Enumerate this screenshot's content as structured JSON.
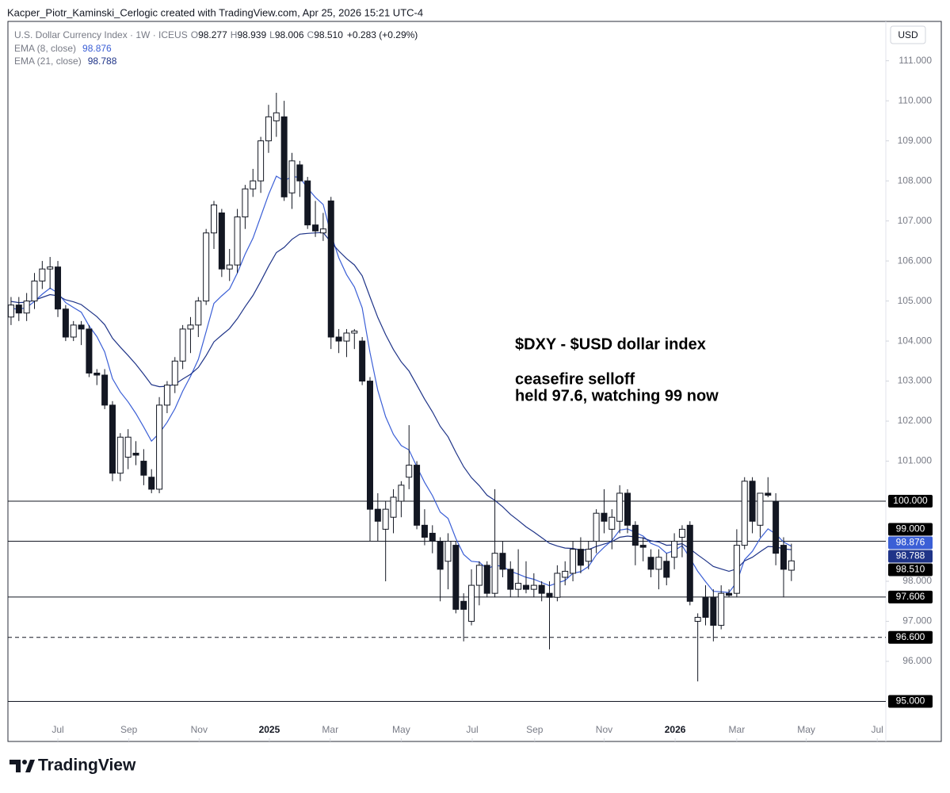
{
  "header": {
    "credit": "Kacper_Piotr_Kaminski_Cerlogic created with TradingView.com, Apr 25, 2026 15:21 UTC-4",
    "currency_button": "USD",
    "brand": "TradingView"
  },
  "chart_data": {
    "type": "candlestick",
    "symbol": "U.S. Dollar Currency Index · 1W · ICEUS",
    "ohlc_prefixes": [
      "O",
      "H",
      "L",
      "C"
    ],
    "ohlc_labels": [
      "98.277",
      "98.939",
      "98.006",
      "98.510"
    ],
    "change_label": "+0.283 (+0.29%)",
    "annotations": [
      "$DXY - $USD dollar index",
      "ceasefire selloff",
      "held 97.6, watching 99 now"
    ],
    "candles": {
      "last_label": "98.510",
      "values": [
        [
          104.6,
          105.1,
          104.4,
          104.9
        ],
        [
          104.9,
          105.1,
          104.5,
          104.7
        ],
        [
          104.7,
          105.2,
          104.5,
          105.0
        ],
        [
          105.0,
          105.7,
          104.8,
          105.5
        ],
        [
          105.5,
          106.0,
          105.3,
          105.8
        ],
        [
          105.8,
          106.1,
          105.3,
          105.85
        ],
        [
          105.85,
          106.0,
          104.6,
          104.8
        ],
        [
          104.8,
          104.9,
          104.0,
          104.1
        ],
        [
          104.1,
          104.5,
          104.0,
          104.4
        ],
        [
          104.4,
          104.5,
          103.9,
          104.3
        ],
        [
          104.3,
          104.4,
          103.1,
          103.2
        ],
        [
          103.2,
          103.3,
          102.9,
          103.15
        ],
        [
          103.15,
          103.3,
          102.3,
          102.4
        ],
        [
          102.4,
          102.5,
          100.5,
          100.7
        ],
        [
          100.7,
          101.7,
          100.5,
          101.6
        ],
        [
          101.1,
          101.8,
          100.8,
          101.6
        ],
        [
          101.2,
          101.5,
          100.9,
          101.15
        ],
        [
          101.0,
          101.3,
          100.4,
          100.65
        ],
        [
          100.6,
          100.8,
          100.2,
          100.3
        ],
        [
          100.3,
          102.6,
          100.2,
          102.4
        ],
        [
          102.4,
          103.0,
          102.2,
          102.9
        ],
        [
          102.9,
          103.6,
          102.7,
          103.5
        ],
        [
          103.5,
          104.4,
          103.3,
          104.3
        ],
        [
          104.3,
          104.6,
          103.7,
          104.4
        ],
        [
          104.4,
          105.1,
          104.1,
          105.0
        ],
        [
          105.0,
          106.8,
          104.9,
          106.7
        ],
        [
          106.7,
          107.5,
          106.3,
          107.4
        ],
        [
          107.2,
          107.3,
          105.6,
          105.8
        ],
        [
          105.8,
          106.3,
          105.5,
          105.9
        ],
        [
          105.9,
          107.3,
          105.7,
          107.1
        ],
        [
          107.1,
          107.9,
          106.8,
          107.8
        ],
        [
          107.8,
          108.3,
          107.6,
          108.0
        ],
        [
          108.0,
          109.1,
          107.7,
          109.0
        ],
        [
          109.0,
          109.9,
          108.7,
          109.6
        ],
        [
          109.5,
          110.2,
          109.1,
          109.7
        ],
        [
          109.6,
          110.0,
          107.5,
          107.6
        ],
        [
          107.7,
          108.7,
          107.3,
          108.5
        ],
        [
          108.4,
          108.5,
          107.6,
          108.0
        ],
        [
          108.0,
          108.1,
          106.8,
          106.9
        ],
        [
          106.9,
          107.5,
          106.6,
          106.75
        ],
        [
          106.7,
          107.2,
          106.5,
          106.8
        ],
        [
          107.5,
          107.6,
          103.8,
          104.1
        ],
        [
          104.1,
          104.3,
          103.7,
          104.0
        ],
        [
          104.0,
          104.3,
          103.6,
          104.2
        ],
        [
          104.2,
          104.3,
          103.8,
          104.25
        ],
        [
          104.0,
          104.1,
          102.9,
          103.0
        ],
        [
          103.0,
          103.1,
          99.0,
          99.8
        ],
        [
          99.8,
          100.2,
          99.0,
          99.5
        ],
        [
          99.3,
          100.0,
          98.0,
          99.8
        ],
        [
          99.6,
          100.3,
          99.2,
          100.1
        ],
        [
          100.0,
          100.5,
          99.6,
          100.4
        ],
        [
          100.6,
          101.9,
          100.3,
          100.9
        ],
        [
          100.9,
          101.0,
          99.3,
          99.4
        ],
        [
          99.4,
          99.8,
          98.9,
          99.1
        ],
        [
          99.2,
          99.4,
          98.7,
          99.0
        ],
        [
          99.0,
          99.1,
          97.5,
          98.3
        ],
        [
          98.5,
          99.2,
          97.8,
          99.0
        ],
        [
          98.9,
          99.0,
          97.2,
          97.3
        ],
        [
          97.5,
          97.7,
          96.5,
          97.3
        ],
        [
          97.0,
          98.3,
          96.9,
          97.9
        ],
        [
          97.9,
          98.5,
          97.4,
          98.4
        ],
        [
          98.4,
          98.5,
          97.6,
          97.7
        ],
        [
          97.7,
          100.3,
          97.6,
          98.7
        ],
        [
          98.7,
          99.0,
          98.1,
          98.3
        ],
        [
          98.3,
          98.5,
          97.6,
          97.8
        ],
        [
          97.8,
          98.8,
          97.6,
          97.95
        ],
        [
          97.9,
          98.5,
          97.7,
          97.8
        ],
        [
          97.8,
          98.2,
          97.6,
          97.9
        ],
        [
          97.9,
          98.0,
          97.5,
          97.7
        ],
        [
          97.7,
          98.0,
          96.3,
          97.6
        ],
        [
          97.6,
          98.4,
          97.5,
          98.2
        ],
        [
          98.1,
          98.5,
          97.9,
          98.25
        ],
        [
          98.2,
          99.0,
          98.0,
          98.8
        ],
        [
          98.8,
          99.1,
          98.2,
          98.4
        ],
        [
          98.5,
          99.0,
          98.3,
          98.8
        ],
        [
          99.0,
          99.8,
          98.7,
          99.7
        ],
        [
          99.7,
          100.3,
          99.2,
          99.5
        ],
        [
          99.3,
          99.8,
          98.8,
          99.6
        ],
        [
          99.5,
          100.4,
          99.2,
          100.2
        ],
        [
          100.2,
          100.3,
          99.2,
          99.4
        ],
        [
          99.4,
          99.5,
          98.4,
          98.9
        ],
        [
          98.9,
          99.1,
          98.5,
          98.85
        ],
        [
          98.6,
          98.8,
          98.1,
          98.3
        ],
        [
          98.3,
          98.8,
          97.8,
          98.6
        ],
        [
          98.5,
          98.7,
          97.9,
          98.1
        ],
        [
          98.6,
          99.2,
          98.3,
          99.0
        ],
        [
          99.1,
          99.4,
          98.6,
          99.3
        ],
        [
          99.4,
          99.5,
          97.4,
          97.5
        ],
        [
          97.0,
          97.2,
          95.5,
          97.1
        ],
        [
          97.6,
          97.9,
          96.9,
          97.1
        ],
        [
          97.6,
          97.8,
          96.5,
          96.9
        ],
        [
          96.9,
          97.9,
          96.8,
          97.7
        ],
        [
          97.7,
          97.8,
          97.6,
          97.65
        ],
        [
          97.7,
          99.3,
          97.6,
          98.9
        ],
        [
          98.9,
          100.6,
          98.8,
          100.5
        ],
        [
          100.5,
          100.6,
          99.2,
          99.5
        ],
        [
          99.4,
          100.2,
          99.1,
          100.2
        ],
        [
          100.2,
          100.6,
          100.1,
          100.15
        ],
        [
          100.0,
          100.2,
          98.4,
          98.7
        ],
        [
          98.9,
          99.1,
          97.6,
          98.3
        ],
        [
          98.277,
          98.939,
          98.006,
          98.51
        ]
      ]
    },
    "series": [
      {
        "name": "EMA (8, close)",
        "color": "#3b5fd6",
        "last_label": "98.876",
        "values": [
          104.82,
          104.79,
          104.84,
          104.99,
          105.17,
          105.32,
          105.2,
          104.96,
          104.84,
          104.72,
          104.38,
          104.11,
          103.73,
          103.06,
          102.73,
          102.48,
          102.19,
          101.85,
          101.5,
          101.7,
          101.97,
          102.31,
          102.75,
          103.12,
          103.54,
          104.24,
          104.94,
          105.13,
          105.3,
          105.7,
          106.17,
          106.57,
          107.11,
          107.66,
          108.12,
          108.0,
          108.11,
          108.09,
          107.82,
          107.59,
          107.41,
          106.67,
          106.08,
          105.66,
          105.35,
          104.83,
          103.71,
          102.77,
          102.11,
          101.67,
          101.39,
          101.28,
          100.86,
          100.47,
          100.14,
          99.73,
          99.57,
          99.07,
          98.67,
          98.5,
          98.48,
          98.31,
          98.4,
          98.37,
          98.25,
          98.18,
          98.1,
          98.05,
          97.97,
          97.89,
          97.96,
          98.02,
          98.2,
          98.24,
          98.37,
          98.66,
          98.85,
          99.02,
          99.28,
          99.31,
          99.22,
          99.13,
          98.95,
          98.87,
          98.7,
          98.77,
          98.89,
          98.58,
          98.25,
          97.99,
          97.75,
          97.74,
          97.72,
          97.98,
          98.54,
          98.75,
          99.07,
          99.31,
          99.18,
          98.98,
          98.876
        ]
      },
      {
        "name": "EMA (21, close)",
        "color": "#1f3488",
        "last_label": "98.788",
        "values": [
          104.99,
          104.96,
          104.97,
          105.02,
          105.09,
          105.16,
          105.13,
          105.03,
          104.98,
          104.91,
          104.76,
          104.61,
          104.41,
          104.07,
          103.85,
          103.64,
          103.42,
          103.17,
          102.91,
          102.86,
          102.87,
          102.92,
          103.05,
          103.17,
          103.34,
          103.64,
          103.98,
          104.15,
          104.31,
          104.56,
          104.86,
          105.14,
          105.49,
          105.87,
          106.21,
          106.34,
          106.54,
          106.67,
          106.69,
          106.7,
          106.71,
          106.47,
          106.25,
          106.06,
          105.9,
          105.63,
          105.1,
          104.59,
          104.16,
          103.79,
          103.48,
          103.25,
          102.9,
          102.55,
          102.23,
          101.87,
          101.61,
          101.22,
          100.86,
          100.59,
          100.39,
          100.15,
          100.02,
          99.86,
          99.67,
          99.52,
          99.36,
          99.23,
          99.09,
          98.95,
          98.88,
          98.83,
          98.82,
          98.78,
          98.79,
          98.87,
          98.93,
          98.99,
          99.1,
          99.13,
          99.11,
          99.08,
          99.01,
          98.98,
          98.9,
          98.91,
          98.94,
          98.81,
          98.66,
          98.52,
          98.37,
          98.31,
          98.25,
          98.31,
          98.51,
          98.6,
          98.74,
          98.87,
          98.86,
          98.81,
          98.788
        ]
      }
    ],
    "levels": [
      {
        "value": 100,
        "label": "100.000",
        "dashed": false
      },
      {
        "value": 99,
        "label": "99.000",
        "dashed": false
      },
      {
        "value": 97.606,
        "label": "97.606",
        "dashed": false
      },
      {
        "value": 96.6,
        "label": "96.600",
        "dashed": true
      },
      {
        "value": 95,
        "label": "95.000",
        "dashed": false
      }
    ],
    "ylim": [
      94.0,
      111.983
    ],
    "yticks": [
      {
        "value": 111,
        "label": "111.000"
      },
      {
        "value": 110,
        "label": "110.000"
      },
      {
        "value": 109,
        "label": "109.000"
      },
      {
        "value": 108,
        "label": "108.000"
      },
      {
        "value": 107,
        "label": "107.000"
      },
      {
        "value": 106,
        "label": "106.000"
      },
      {
        "value": 105,
        "label": "105.000"
      },
      {
        "value": 104,
        "label": "104.000"
      },
      {
        "value": 103,
        "label": "103.000"
      },
      {
        "value": 102,
        "label": "102.000"
      },
      {
        "value": 101,
        "label": "101.000"
      },
      {
        "value": 98,
        "label": "98.000"
      },
      {
        "value": 97,
        "label": "97.000"
      },
      {
        "value": 96,
        "label": "96.000"
      }
    ],
    "xlim": [
      -0.4,
      112.1
    ],
    "xticks": [
      {
        "value": 6,
        "label": "Jul"
      },
      {
        "value": 15.1,
        "label": "Sep"
      },
      {
        "value": 24.1,
        "label": "Nov"
      },
      {
        "value": 33.1,
        "label": "2025"
      },
      {
        "value": 40.9,
        "label": "Mar"
      },
      {
        "value": 50,
        "label": "May"
      },
      {
        "value": 59.1,
        "label": "Jul"
      },
      {
        "value": 67.1,
        "label": "Sep"
      },
      {
        "value": 76,
        "label": "Nov"
      },
      {
        "value": 85.1,
        "label": "2026"
      },
      {
        "value": 93,
        "label": "Mar"
      },
      {
        "value": 101.9,
        "label": "May"
      },
      {
        "value": 111,
        "label": "Jul"
      }
    ]
  }
}
